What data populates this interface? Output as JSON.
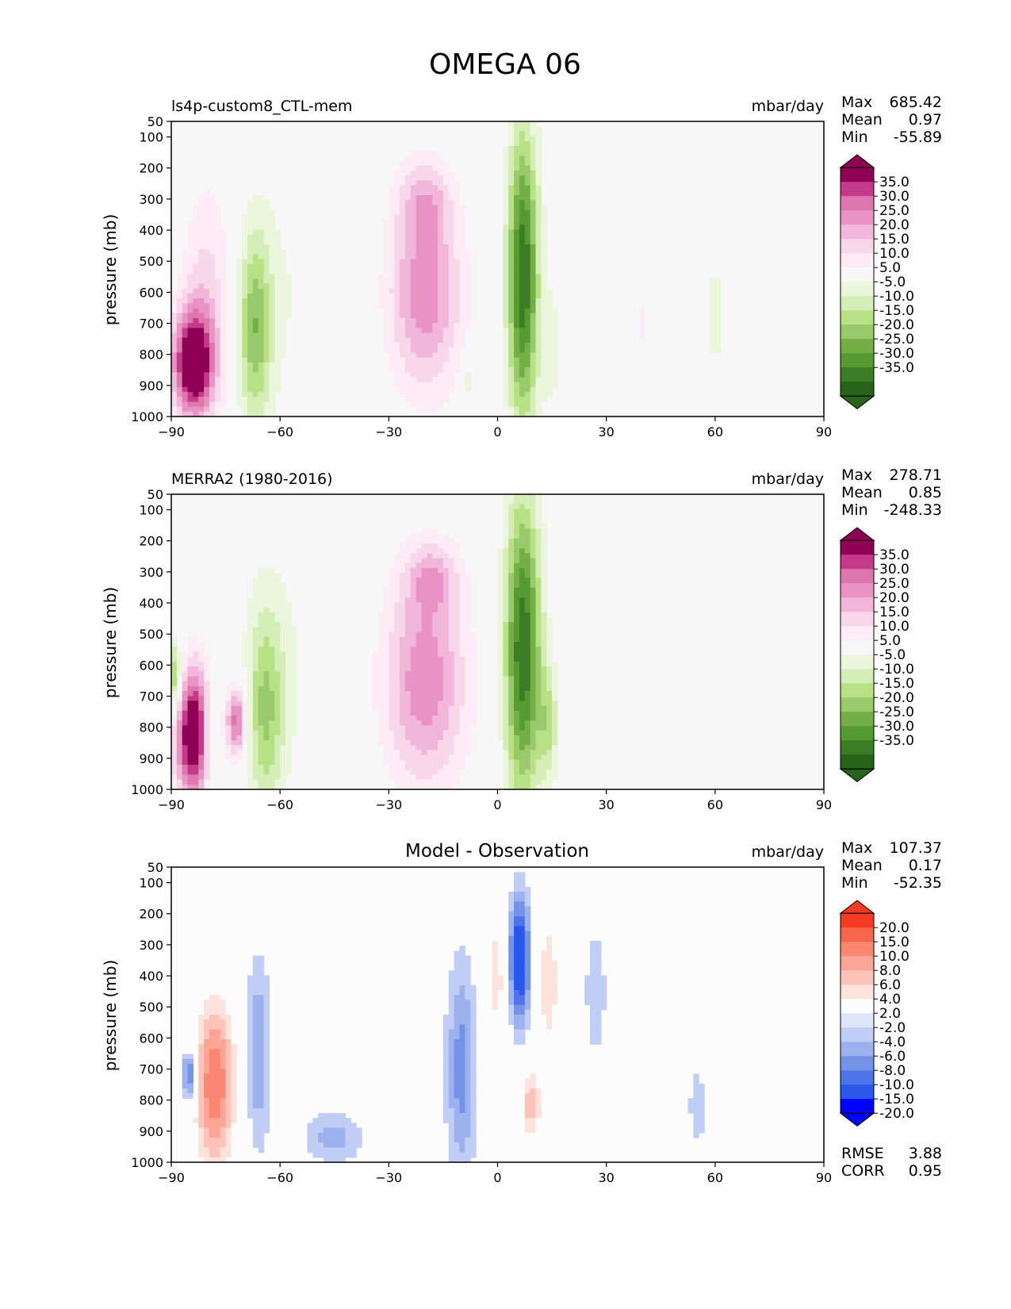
{
  "figure_title": "OMEGA 06",
  "colors": {
    "pink_green": [
      "#276419",
      "#3b7d24",
      "#559b31",
      "#74ae47",
      "#98c96a",
      "#b8e186",
      "#d5edb6",
      "#ebf6dc",
      "#f7f7f7",
      "#fdecf5",
      "#f8d7ea",
      "#f1b6da",
      "#e993c4",
      "#de77ae",
      "#c5398a",
      "#8e0152"
    ],
    "blue_red": [
      "#0000ff",
      "#2b57ef",
      "#4e75e8",
      "#7493e6",
      "#9cb1ee",
      "#c0cdf5",
      "#e0e6fa",
      "#fcfcfc",
      "#fde2dd",
      "#fcc3b8",
      "#fba596",
      "#fa8772",
      "#f8654d",
      "#f33a22"
    ]
  },
  "panels": [
    {
      "id": "test",
      "left_title": "ls4p-custom8_CTL-mem",
      "center_title": "",
      "units": "mbar/day",
      "stats": {
        "labels": [
          "Max",
          "Mean",
          "Min"
        ],
        "values": [
          "685.42",
          "0.97",
          "-55.89"
        ]
      },
      "extra_stats": null,
      "ylabel": "pressure (mb)",
      "palette": "pink_green",
      "colorbar_labels": [
        "35.0",
        "30.0",
        "25.0",
        "20.0",
        "15.0",
        "10.0",
        "5.0",
        "-5.0",
        "-10.0",
        "-15.0",
        "-20.0",
        "-25.0",
        "-30.0",
        "-35.0"
      ]
    },
    {
      "id": "reference",
      "left_title": "MERRA2 (1980-2016)",
      "center_title": "",
      "units": "mbar/day",
      "stats": {
        "labels": [
          "Max",
          "Mean",
          "Min"
        ],
        "values": [
          "278.71",
          "0.85",
          "-248.33"
        ]
      },
      "extra_stats": null,
      "ylabel": "pressure (mb)",
      "palette": "pink_green",
      "colorbar_labels": [
        "35.0",
        "30.0",
        "25.0",
        "20.0",
        "15.0",
        "10.0",
        "5.0",
        "-5.0",
        "-10.0",
        "-15.0",
        "-20.0",
        "-25.0",
        "-30.0",
        "-35.0"
      ]
    },
    {
      "id": "difference",
      "left_title": "",
      "center_title": "Model - Observation",
      "units": "mbar/day",
      "stats": {
        "labels": [
          "Max",
          "Mean",
          "Min"
        ],
        "values": [
          "107.37",
          "0.17",
          "-52.35"
        ]
      },
      "extra_stats": {
        "labels": [
          "RMSE",
          "CORR"
        ],
        "values": [
          "3.88",
          "0.95"
        ]
      },
      "ylabel": "pressure (mb)",
      "palette": "blue_red",
      "colorbar_labels": [
        "20.0",
        "15.0",
        "10.0",
        "8.0",
        "6.0",
        "4.0",
        "2.0",
        "-2.0",
        "-4.0",
        "-6.0",
        "-8.0",
        "-10.0",
        "-15.0",
        "-20.0"
      ]
    }
  ],
  "chart_data": [
    {
      "type": "heatmap",
      "title": "ls4p-custom8_CTL-mem",
      "xlabel": "",
      "ylabel": "pressure (mb)",
      "x_ticks": [
        -90,
        -60,
        -30,
        0,
        30,
        60,
        90
      ],
      "y_ticks": [
        50,
        100,
        200,
        300,
        400,
        500,
        600,
        700,
        800,
        900,
        1000
      ],
      "xlim": [
        -90,
        90
      ],
      "ylim": [
        1000,
        50
      ],
      "features": [
        {
          "lat": 7,
          "p": 550,
          "w_lat": 3.0,
          "w_p": 330,
          "value": -40
        },
        {
          "lat": -67,
          "p": 720,
          "w_lat": 3.2,
          "w_p": 220,
          "value": -22
        },
        {
          "lat": -60,
          "p": 600,
          "w_lat": 9,
          "w_p": 300,
          "value": -5
        },
        {
          "lat": -20,
          "p": 600,
          "w_lat": 7,
          "w_p": 220,
          "value": 24
        },
        {
          "lat": -20,
          "p": 300,
          "w_lat": 5,
          "w_p": 90,
          "value": 12
        },
        {
          "lat": -84,
          "p": 830,
          "w_lat": 4,
          "w_p": 120,
          "value": 45
        },
        {
          "lat": -80,
          "p": 600,
          "w_lat": 5,
          "w_p": 250,
          "value": 12
        },
        {
          "lat": -8,
          "p": 880,
          "w_lat": 1.5,
          "w_p": 50,
          "value": -9
        },
        {
          "lat": 15,
          "p": 780,
          "w_lat": 2,
          "w_p": 150,
          "value": -7
        },
        {
          "lat": 60,
          "p": 680,
          "w_lat": 3,
          "w_p": 220,
          "value": -6
        },
        {
          "lat": 40,
          "p": 700,
          "w_lat": 2,
          "w_p": 80,
          "value": 6
        }
      ]
    },
    {
      "type": "heatmap",
      "title": "MERRA2 (1980-2016)",
      "xlabel": "",
      "ylabel": "pressure (mb)",
      "x_ticks": [
        -90,
        -60,
        -30,
        0,
        30,
        60,
        90
      ],
      "y_ticks": [
        50,
        100,
        200,
        300,
        400,
        500,
        600,
        700,
        800,
        900,
        1000
      ],
      "xlim": [
        -90,
        90
      ],
      "ylim": [
        1000,
        50
      ],
      "features": [
        {
          "lat": 7,
          "p": 550,
          "w_lat": 3.5,
          "w_p": 340,
          "value": -40
        },
        {
          "lat": -64,
          "p": 750,
          "w_lat": 3.5,
          "w_p": 230,
          "value": -18
        },
        {
          "lat": -60,
          "p": 600,
          "w_lat": 9,
          "w_p": 320,
          "value": -5
        },
        {
          "lat": -20,
          "p": 650,
          "w_lat": 8,
          "w_p": 240,
          "value": 24
        },
        {
          "lat": -18,
          "p": 320,
          "w_lat": 5,
          "w_p": 80,
          "value": 14
        },
        {
          "lat": -84,
          "p": 820,
          "w_lat": 3.5,
          "w_p": 150,
          "value": 45
        },
        {
          "lat": -72,
          "p": 780,
          "w_lat": 2,
          "w_p": 80,
          "value": 30
        },
        {
          "lat": -79,
          "p": 830,
          "w_lat": 1.5,
          "w_p": 120,
          "value": -15
        },
        {
          "lat": 14,
          "p": 790,
          "w_lat": 2,
          "w_p": 130,
          "value": -15
        },
        {
          "lat": -89,
          "p": 640,
          "w_lat": 1.5,
          "w_p": 80,
          "value": -25
        },
        {
          "lat": 25,
          "p": 500,
          "w_lat": 3,
          "w_p": 300,
          "value": 5
        }
      ]
    },
    {
      "type": "heatmap",
      "title": "Model - Observation",
      "xlabel": "",
      "ylabel": "pressure (mb)",
      "x_ticks": [
        -90,
        -60,
        -30,
        0,
        30,
        60,
        90
      ],
      "y_ticks": [
        50,
        100,
        200,
        300,
        400,
        500,
        600,
        700,
        800,
        900,
        1000
      ],
      "xlim": [
        -90,
        90
      ],
      "ylim": [
        1000,
        50
      ],
      "features": [
        {
          "lat": 6,
          "p": 350,
          "w_lat": 2.2,
          "w_p": 150,
          "value": -14
        },
        {
          "lat": 0,
          "p": 400,
          "w_lat": 2.5,
          "w_p": 200,
          "value": 5
        },
        {
          "lat": 14,
          "p": 420,
          "w_lat": 3,
          "w_p": 220,
          "value": 5
        },
        {
          "lat": 9,
          "p": 820,
          "w_lat": 2,
          "w_p": 90,
          "value": 7
        },
        {
          "lat": -10,
          "p": 700,
          "w_lat": 3,
          "w_p": 250,
          "value": -7
        },
        {
          "lat": -78,
          "p": 750,
          "w_lat": 4,
          "w_p": 200,
          "value": 12
        },
        {
          "lat": -66,
          "p": 650,
          "w_lat": 2.5,
          "w_p": 220,
          "value": -6
        },
        {
          "lat": -85,
          "p": 720,
          "w_lat": 1.5,
          "w_p": 60,
          "value": -10
        },
        {
          "lat": -35,
          "p": 450,
          "w_lat": 5,
          "w_p": 230,
          "value": 3
        },
        {
          "lat": -45,
          "p": 920,
          "w_lat": 6,
          "w_p": 60,
          "value": -5
        },
        {
          "lat": 27,
          "p": 450,
          "w_lat": 2,
          "w_p": 150,
          "value": -4
        },
        {
          "lat": 88,
          "p": 600,
          "w_lat": 2,
          "w_p": 250,
          "value": 4
        },
        {
          "lat": 55,
          "p": 820,
          "w_lat": 2,
          "w_p": 120,
          "value": -3
        }
      ]
    }
  ]
}
